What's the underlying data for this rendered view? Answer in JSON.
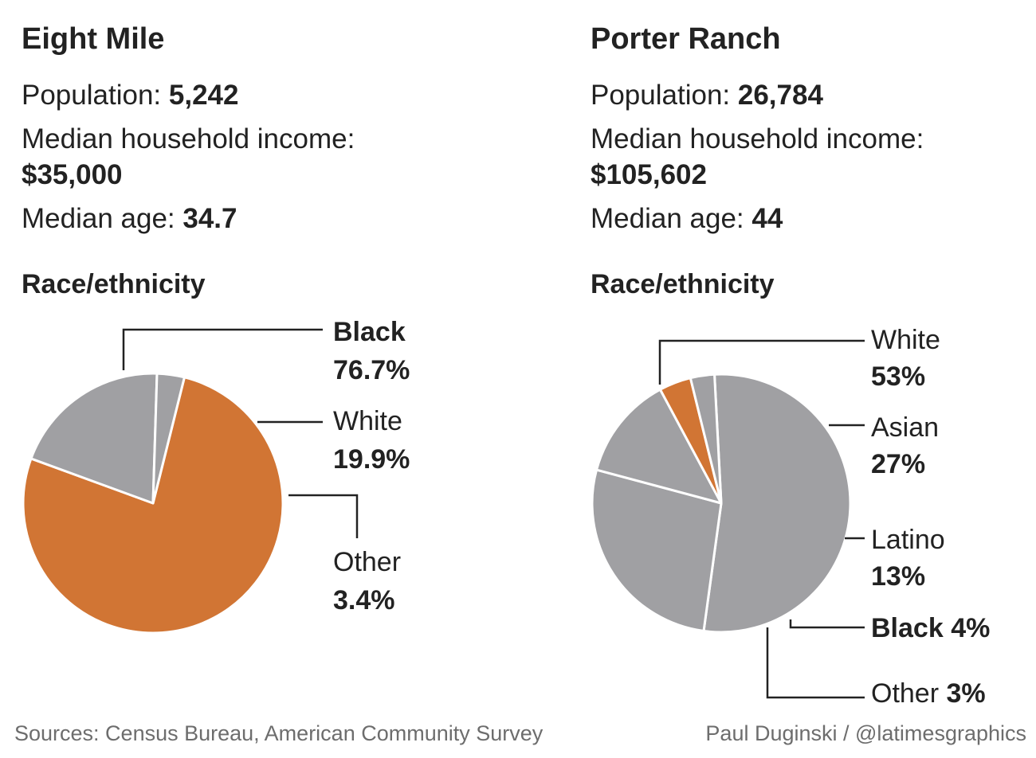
{
  "left": {
    "title": "Eight Mile",
    "population_label": "Population:",
    "population": "5,242",
    "income_label": "Median household income:",
    "income": "$35,000",
    "age_label": "Median age:",
    "age": "34.7",
    "race_label": "Race/ethnicity"
  },
  "right": {
    "title": "Porter Ranch",
    "population_label": "Population:",
    "population": "26,784",
    "income_label": "Median household income:",
    "income": "$105,602",
    "age_label": "Median age:",
    "age": "44",
    "race_label": "Race/ethnicity"
  },
  "chart_data": [
    {
      "type": "pie",
      "name": "Eight Mile",
      "slices": [
        {
          "label": "Black",
          "value": 76.7,
          "display": "76.7%",
          "color": "#d17534",
          "bold_label": true
        },
        {
          "label": "White",
          "value": 19.9,
          "display": "19.9%",
          "color": "#a0a0a3",
          "bold_label": false
        },
        {
          "label": "Other",
          "value": 3.4,
          "display": "3.4%",
          "color": "#a0a0a3",
          "bold_label": false
        }
      ]
    },
    {
      "type": "pie",
      "name": "Porter Ranch",
      "slices": [
        {
          "label": "White",
          "value": 53,
          "display": "53%",
          "color": "#a0a0a3",
          "bold_label": false
        },
        {
          "label": "Asian",
          "value": 27,
          "display": "27%",
          "color": "#a0a0a3",
          "bold_label": false
        },
        {
          "label": "Latino",
          "value": 13,
          "display": "13%",
          "color": "#a0a0a3",
          "bold_label": false
        },
        {
          "label": "Black",
          "value": 4,
          "display": "4%",
          "color": "#d17534",
          "bold_label": true
        },
        {
          "label": "Other",
          "value": 3,
          "display": "3%",
          "color": "#a0a0a3",
          "bold_label": false
        }
      ]
    }
  ],
  "footer": {
    "sources": "Sources: Census Bureau, American Community Survey",
    "credit": "Paul Duginski / @latimesgraphics"
  },
  "colors": {
    "accent": "#d17534",
    "gray_slice": "#a0a0a3",
    "text": "#222222",
    "footer_text": "#6d6d6d"
  }
}
